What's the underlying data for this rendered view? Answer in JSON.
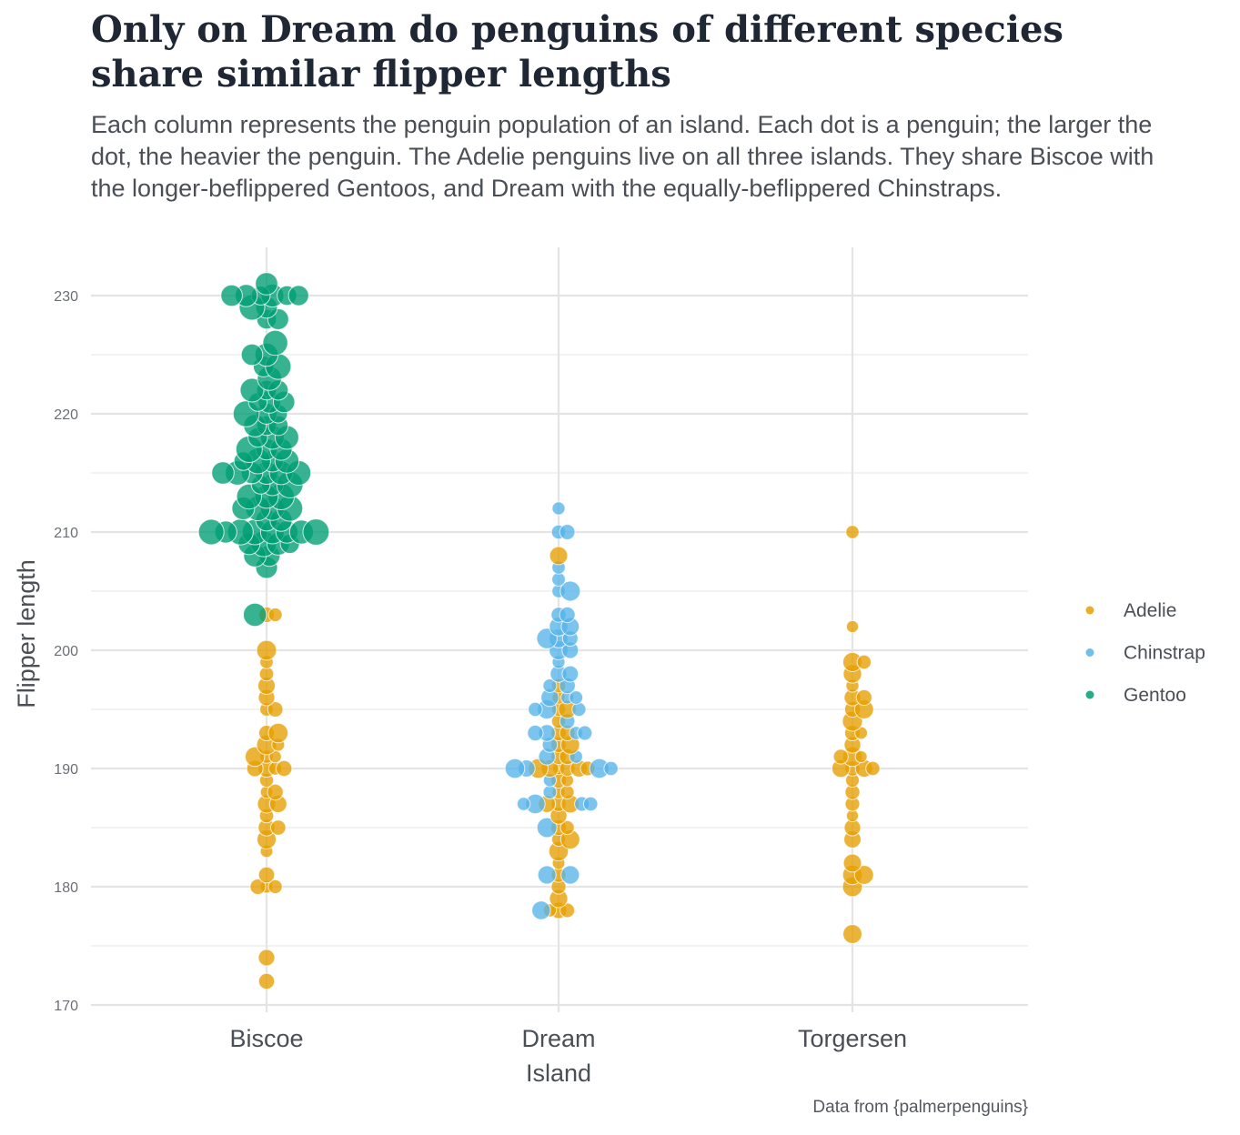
{
  "title": "Only on Dream do penguins of different species share similar flipper lengths",
  "subtitle": "Each column represents the penguin population of an island. Each dot is a penguin; the larger the dot, the heavier the penguin. The Adelie penguins live on all three islands. They share Biscoe with the longer-beflippered Gentoos, and Dream with the equally-beflippered Chinstraps.",
  "caption": "Data from {palmerpenguins}",
  "chart_data": {
    "type": "scatter",
    "subtype": "beeswarm",
    "xlabel": "Island",
    "ylabel": "Flipper length",
    "categories": [
      "Biscoe",
      "Dream",
      "Torgersen"
    ],
    "ylim": [
      170,
      232
    ],
    "yticks": [
      170,
      180,
      190,
      200,
      210,
      220,
      230
    ],
    "grid": true,
    "legend_position": "right",
    "size_encodes": "body mass (larger dot = heavier penguin)",
    "series": [
      {
        "name": "Adelie",
        "color": "#E69F00",
        "points": [
          {
            "island": "Biscoe",
            "values": [
              172,
              174,
              180,
              180,
              180,
              181,
              183,
              184,
              185,
              185,
              186,
              187,
              187,
              188,
              188,
              189,
              190,
              190,
              190,
              190,
              191,
              191,
              191,
              192,
              192,
              193,
              193,
              195,
              195,
              196,
              197,
              198,
              199,
              200,
              203,
              203
            ]
          },
          {
            "island": "Dream",
            "values": [
              178,
              178,
              178,
              179,
              180,
              181,
              182,
              183,
              184,
              184,
              185,
              185,
              186,
              187,
              187,
              187,
              188,
              188,
              189,
              189,
              190,
              190,
              190,
              190,
              190,
              190,
              191,
              191,
              192,
              192,
              193,
              193,
              194,
              195,
              195,
              196,
              197,
              208
            ]
          },
          {
            "island": "Torgersen",
            "values": [
              176,
              180,
              181,
              181,
              182,
              184,
              185,
              186,
              187,
              188,
              189,
              190,
              190,
              190,
              190,
              191,
              191,
              191,
              192,
              193,
              193,
              194,
              195,
              195,
              196,
              196,
              197,
              198,
              199,
              199,
              202,
              210
            ]
          }
        ]
      },
      {
        "name": "Chinstrap",
        "color": "#56B4E9",
        "points": [
          {
            "island": "Dream",
            "values": [
              178,
              181,
              181,
              185,
              187,
              187,
              187,
              187,
              188,
              189,
              190,
              190,
              190,
              190,
              191,
              191,
              192,
              193,
              193,
              193,
              193,
              194,
              195,
              195,
              195,
              196,
              196,
              196,
              197,
              197,
              198,
              198,
              199,
              200,
              200,
              201,
              201,
              201,
              202,
              202,
              203,
              203,
              205,
              205,
              206,
              207,
              210,
              210,
              212
            ]
          }
        ]
      },
      {
        "name": "Gentoo",
        "color": "#009E73",
        "points": [
          {
            "island": "Biscoe",
            "values": [
              203,
              207,
              208,
              208,
              209,
              209,
              209,
              209,
              210,
              210,
              210,
              210,
              210,
              210,
              210,
              210,
              211,
              211,
              212,
              212,
              212,
              212,
              213,
              213,
              213,
              214,
              214,
              214,
              215,
              215,
              215,
              215,
              215,
              215,
              216,
              216,
              216,
              216,
              217,
              217,
              217,
              218,
              218,
              218,
              219,
              219,
              219,
              220,
              220,
              220,
              221,
              221,
              221,
              222,
              222,
              222,
              223,
              224,
              224,
              225,
              225,
              226,
              228,
              228,
              229,
              229,
              230,
              230,
              230,
              230,
              230,
              230,
              231
            ]
          }
        ]
      }
    ],
    "legend": [
      "Adelie",
      "Chinstrap",
      "Gentoo"
    ]
  }
}
